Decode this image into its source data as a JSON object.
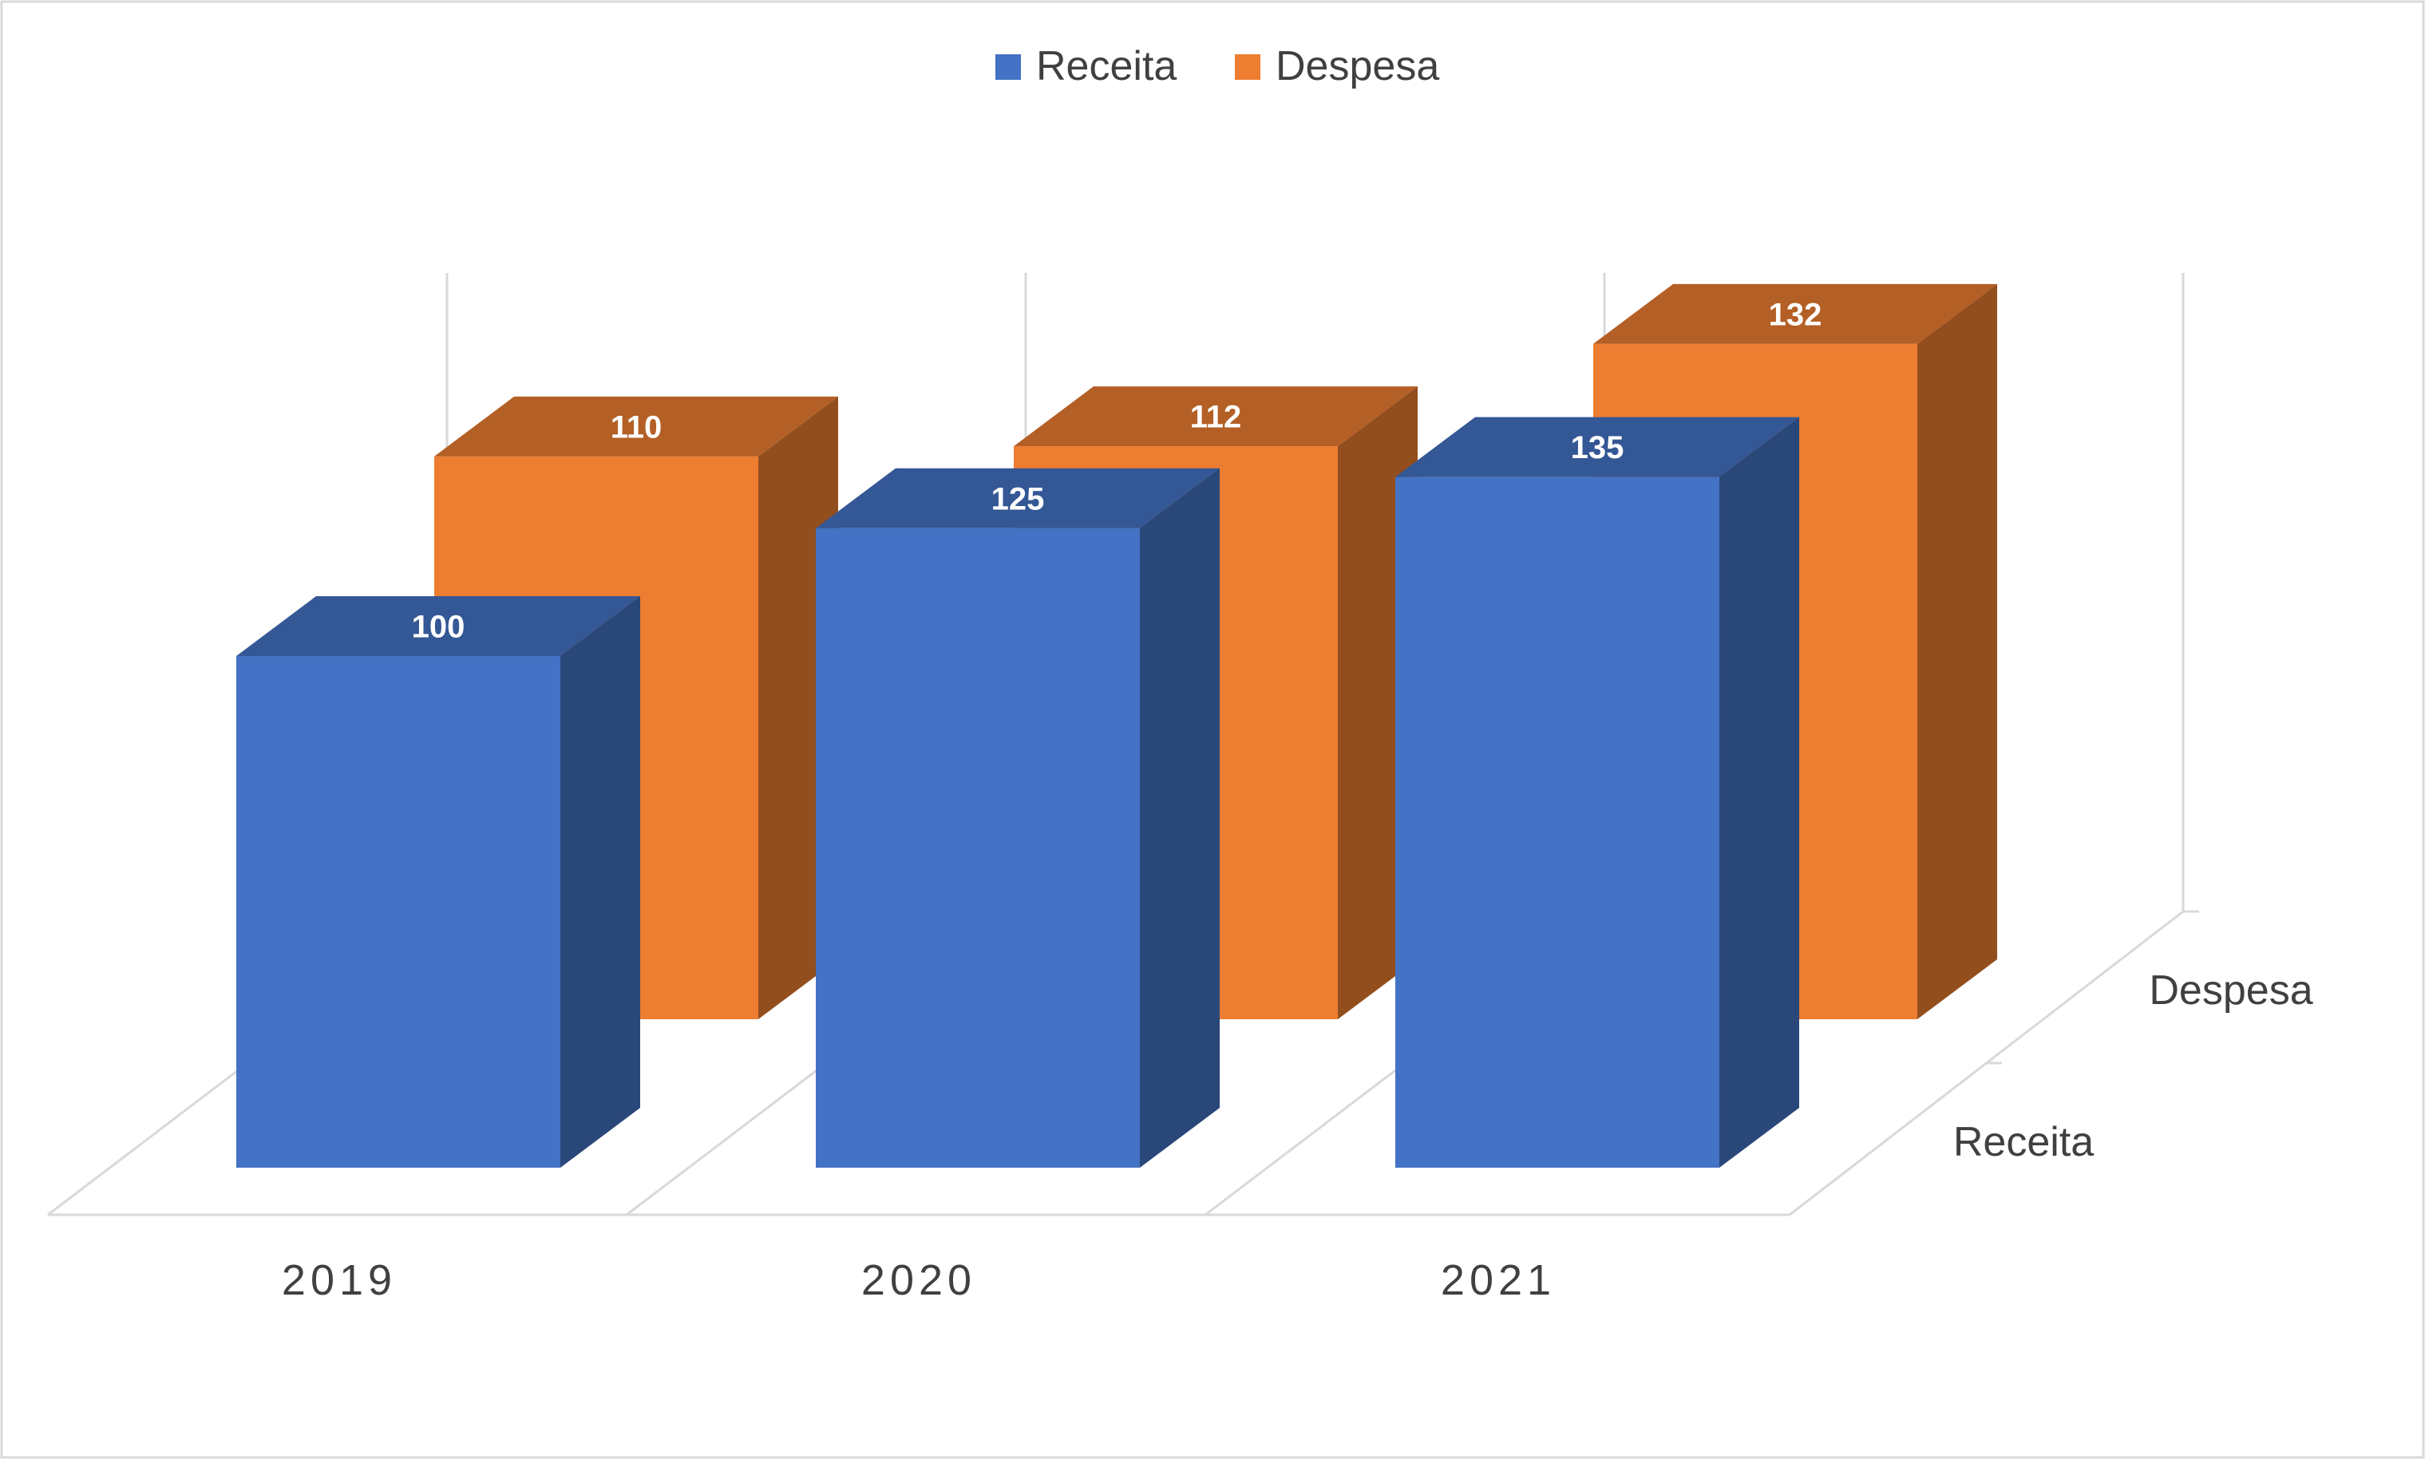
{
  "chart_data": {
    "type": "bar",
    "categories": [
      "2019",
      "2020",
      "2021"
    ],
    "series": [
      {
        "name": "Receita",
        "values": [
          100,
          125,
          135
        ],
        "color": "#4472C4"
      },
      {
        "name": "Despesa",
        "values": [
          110,
          112,
          132
        ],
        "color": "#ED7D31"
      }
    ],
    "depth_labels": [
      "Despesa",
      "Receita"
    ],
    "legend_position": "top-center",
    "three_d": true,
    "gridlines": true
  }
}
